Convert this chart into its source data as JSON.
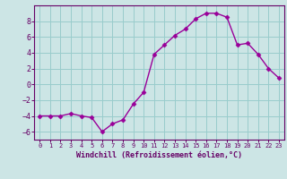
{
  "x": [
    0,
    1,
    2,
    3,
    4,
    5,
    6,
    7,
    8,
    9,
    10,
    11,
    12,
    13,
    14,
    15,
    16,
    17,
    18,
    19,
    20,
    21,
    22,
    23
  ],
  "y": [
    -4,
    -4,
    -4,
    -3.7,
    -4,
    -4.2,
    -6,
    -5,
    -4.5,
    -2.5,
    -1,
    3.8,
    5,
    6.2,
    7,
    8.3,
    9,
    9,
    8.5,
    5,
    5.2,
    3.8,
    2,
    0.8
  ],
  "line_color": "#990099",
  "marker": "D",
  "marker_size": 2.5,
  "bg_color": "#cce5e5",
  "grid_color": "#99cccc",
  "xlabel": "Windchill (Refroidissement éolien,°C)",
  "xlabel_color": "#660066",
  "tick_color": "#660066",
  "spine_color": "#660066",
  "ylim": [
    -7,
    10
  ],
  "yticks": [
    -6,
    -4,
    -2,
    0,
    2,
    4,
    6,
    8
  ],
  "xlim": [
    -0.5,
    23.5
  ],
  "xticks": [
    0,
    1,
    2,
    3,
    4,
    5,
    6,
    7,
    8,
    9,
    10,
    11,
    12,
    13,
    14,
    15,
    16,
    17,
    18,
    19,
    20,
    21,
    22,
    23
  ]
}
